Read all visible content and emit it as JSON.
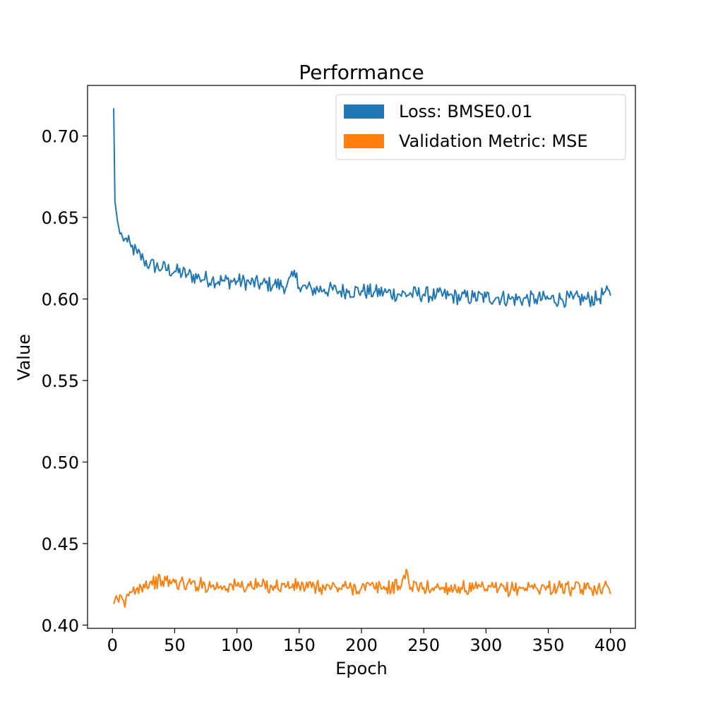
{
  "chart_data": {
    "type": "line",
    "title": "Performance",
    "xlabel": "Epoch",
    "ylabel": "Value",
    "xlim": [
      -20,
      420
    ],
    "ylim": [
      0.398,
      0.731
    ],
    "xticks": [
      0,
      50,
      100,
      150,
      200,
      250,
      300,
      350,
      400
    ],
    "yticks": [
      0.4,
      0.45,
      0.5,
      0.55,
      0.6,
      0.65,
      0.7
    ],
    "grid": false,
    "legend_position": "top-right",
    "series": [
      {
        "name": "Loss: BMSE0.01",
        "color": "#1f77b4",
        "x": [
          1,
          2,
          3,
          4,
          5,
          6,
          8,
          10,
          12,
          15,
          20,
          25,
          30,
          40,
          50,
          60,
          70,
          80,
          90,
          100,
          110,
          120,
          130,
          140,
          148,
          150,
          160,
          170,
          180,
          190,
          200,
          210,
          220,
          230,
          240,
          250,
          260,
          270,
          280,
          290,
          300,
          310,
          320,
          330,
          340,
          350,
          360,
          370,
          380,
          390,
          395,
          400
        ],
        "values": [
          0.717,
          0.66,
          0.654,
          0.648,
          0.644,
          0.64,
          0.638,
          0.637,
          0.635,
          0.632,
          0.628,
          0.624,
          0.621,
          0.619,
          0.617,
          0.615,
          0.613,
          0.612,
          0.611,
          0.611,
          0.61,
          0.609,
          0.609,
          0.608,
          0.616,
          0.607,
          0.606,
          0.606,
          0.605,
          0.605,
          0.605,
          0.604,
          0.604,
          0.603,
          0.603,
          0.603,
          0.602,
          0.602,
          0.601,
          0.601,
          0.601,
          0.601,
          0.6,
          0.6,
          0.6,
          0.6,
          0.6,
          0.6,
          0.6,
          0.6,
          0.604,
          0.602
        ]
      },
      {
        "name": "Validation Metric: MSE",
        "color": "#ff7f0e",
        "x": [
          1,
          3,
          5,
          8,
          10,
          12,
          15,
          20,
          25,
          30,
          40,
          50,
          60,
          70,
          80,
          90,
          100,
          110,
          120,
          130,
          140,
          150,
          160,
          170,
          180,
          190,
          200,
          210,
          220,
          230,
          237,
          240,
          250,
          260,
          270,
          280,
          290,
          300,
          310,
          320,
          330,
          340,
          350,
          360,
          370,
          380,
          390,
          395,
          400
        ],
        "values": [
          0.413,
          0.418,
          0.414,
          0.416,
          0.411,
          0.419,
          0.42,
          0.423,
          0.425,
          0.426,
          0.427,
          0.426,
          0.425,
          0.425,
          0.424,
          0.424,
          0.424,
          0.424,
          0.424,
          0.424,
          0.424,
          0.424,
          0.423,
          0.423,
          0.423,
          0.423,
          0.423,
          0.423,
          0.423,
          0.424,
          0.432,
          0.423,
          0.423,
          0.423,
          0.423,
          0.423,
          0.422,
          0.422,
          0.422,
          0.422,
          0.423,
          0.423,
          0.423,
          0.423,
          0.422,
          0.422,
          0.423,
          0.424,
          0.419
        ]
      }
    ]
  }
}
